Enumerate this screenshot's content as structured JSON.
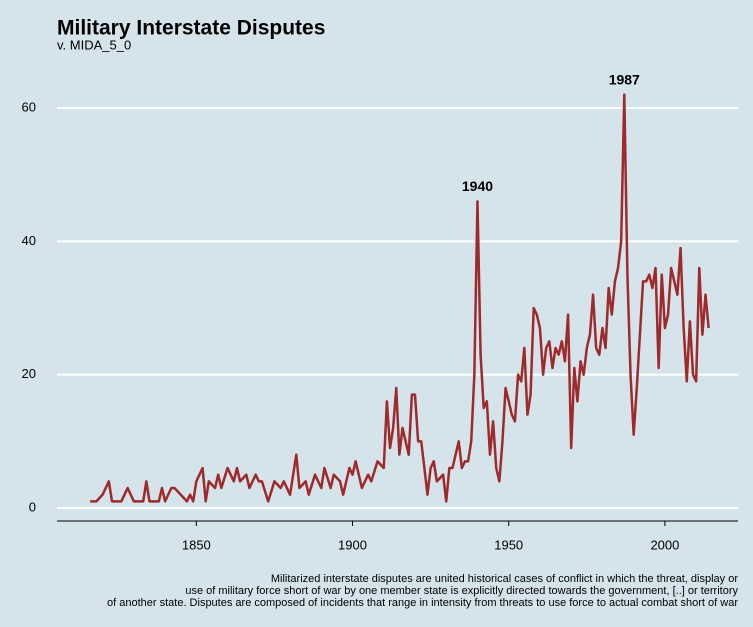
{
  "chart_data": {
    "type": "line",
    "title": "Military Interstate Disputes",
    "subtitle": "v. MIDA_5_0",
    "caption": [
      "Militarized interstate disputes are united historical cases of conflict in which the threat, display or",
      "use of military force short of war by one member state is explicitly directed towards the government, [..] or territory",
      "of another state. Disputes are composed of incidents that range in intensity from threats to use force to actual combat short of war"
    ],
    "x": [
      1816,
      1818,
      1820,
      1822,
      1823,
      1826,
      1828,
      1830,
      1833,
      1834,
      1835,
      1838,
      1839,
      1840,
      1842,
      1843,
      1845,
      1847,
      1848,
      1849,
      1850,
      1852,
      1853,
      1854,
      1856,
      1857,
      1858,
      1860,
      1862,
      1863,
      1864,
      1866,
      1867,
      1869,
      1870,
      1871,
      1873,
      1875,
      1877,
      1878,
      1880,
      1882,
      1883,
      1885,
      1886,
      1888,
      1890,
      1891,
      1893,
      1894,
      1896,
      1897,
      1899,
      1900,
      1901,
      1903,
      1905,
      1906,
      1908,
      1910,
      1911,
      1912,
      1913,
      1914,
      1915,
      1916,
      1917,
      1918,
      1919,
      1920,
      1921,
      1922,
      1923,
      1924,
      1925,
      1926,
      1927,
      1929,
      1930,
      1931,
      1932,
      1934,
      1935,
      1936,
      1937,
      1938,
      1939,
      1940,
      1941,
      1942,
      1943,
      1944,
      1945,
      1946,
      1947,
      1948,
      1949,
      1950,
      1951,
      1952,
      1953,
      1954,
      1955,
      1956,
      1957,
      1958,
      1959,
      1960,
      1961,
      1962,
      1963,
      1964,
      1965,
      1966,
      1967,
      1968,
      1969,
      1970,
      1971,
      1972,
      1973,
      1974,
      1975,
      1976,
      1977,
      1978,
      1979,
      1980,
      1981,
      1982,
      1983,
      1984,
      1985,
      1986,
      1987,
      1988,
      1989,
      1990,
      1991,
      1992,
      1993,
      1994,
      1995,
      1996,
      1997,
      1998,
      1999,
      2000,
      2001,
      2002,
      2003,
      2004,
      2005,
      2006,
      2007,
      2008,
      2009,
      2010,
      2011,
      2012,
      2013,
      2014
    ],
    "series": [
      {
        "color": "#9e2a2b",
        "values": [
          1,
          1,
          2,
          4,
          1,
          1,
          3,
          1,
          1,
          4,
          1,
          1,
          3,
          1,
          3,
          3,
          2,
          1,
          2,
          1,
          4,
          6,
          1,
          4,
          3,
          5,
          3,
          6,
          4,
          6,
          4,
          5,
          3,
          5,
          4,
          4,
          1,
          4,
          3,
          4,
          2,
          8,
          3,
          4,
          2,
          5,
          3,
          6,
          3,
          5,
          4,
          2,
          6,
          5,
          7,
          3,
          5,
          4,
          7,
          6,
          16,
          9,
          12,
          18,
          8,
          12,
          10,
          8,
          17,
          17,
          10,
          10,
          6,
          2,
          6,
          7,
          4,
          5,
          1,
          6,
          6,
          10,
          6,
          7,
          7,
          10,
          20,
          46,
          23,
          15,
          16,
          8,
          13,
          6,
          4,
          10,
          18,
          16,
          14,
          13,
          20,
          19,
          24,
          14,
          17,
          30,
          29,
          27,
          20,
          24,
          25,
          21,
          24,
          23,
          25,
          22,
          29,
          9,
          21,
          16,
          22,
          20,
          24,
          26,
          32,
          24,
          23,
          27,
          24,
          33,
          29,
          34,
          36,
          40,
          62,
          35,
          20,
          11,
          18,
          26,
          34,
          34,
          35,
          33,
          36,
          21,
          35,
          27,
          29,
          36,
          34,
          32,
          39,
          27,
          19,
          28,
          20,
          19,
          36,
          26,
          32,
          27
        ]
      }
    ],
    "annotations": [
      {
        "text": "1940",
        "x": 1940,
        "y": 46
      },
      {
        "text": "1987",
        "x": 1987,
        "y": 62
      }
    ],
    "xlim": [
      1805.4,
      2023.4
    ],
    "ylim": [
      -1.95,
      64.2
    ],
    "xticks": [
      1850,
      1900,
      1950,
      2000
    ],
    "yticks": [
      0,
      20,
      40,
      60
    ],
    "grid": true
  }
}
